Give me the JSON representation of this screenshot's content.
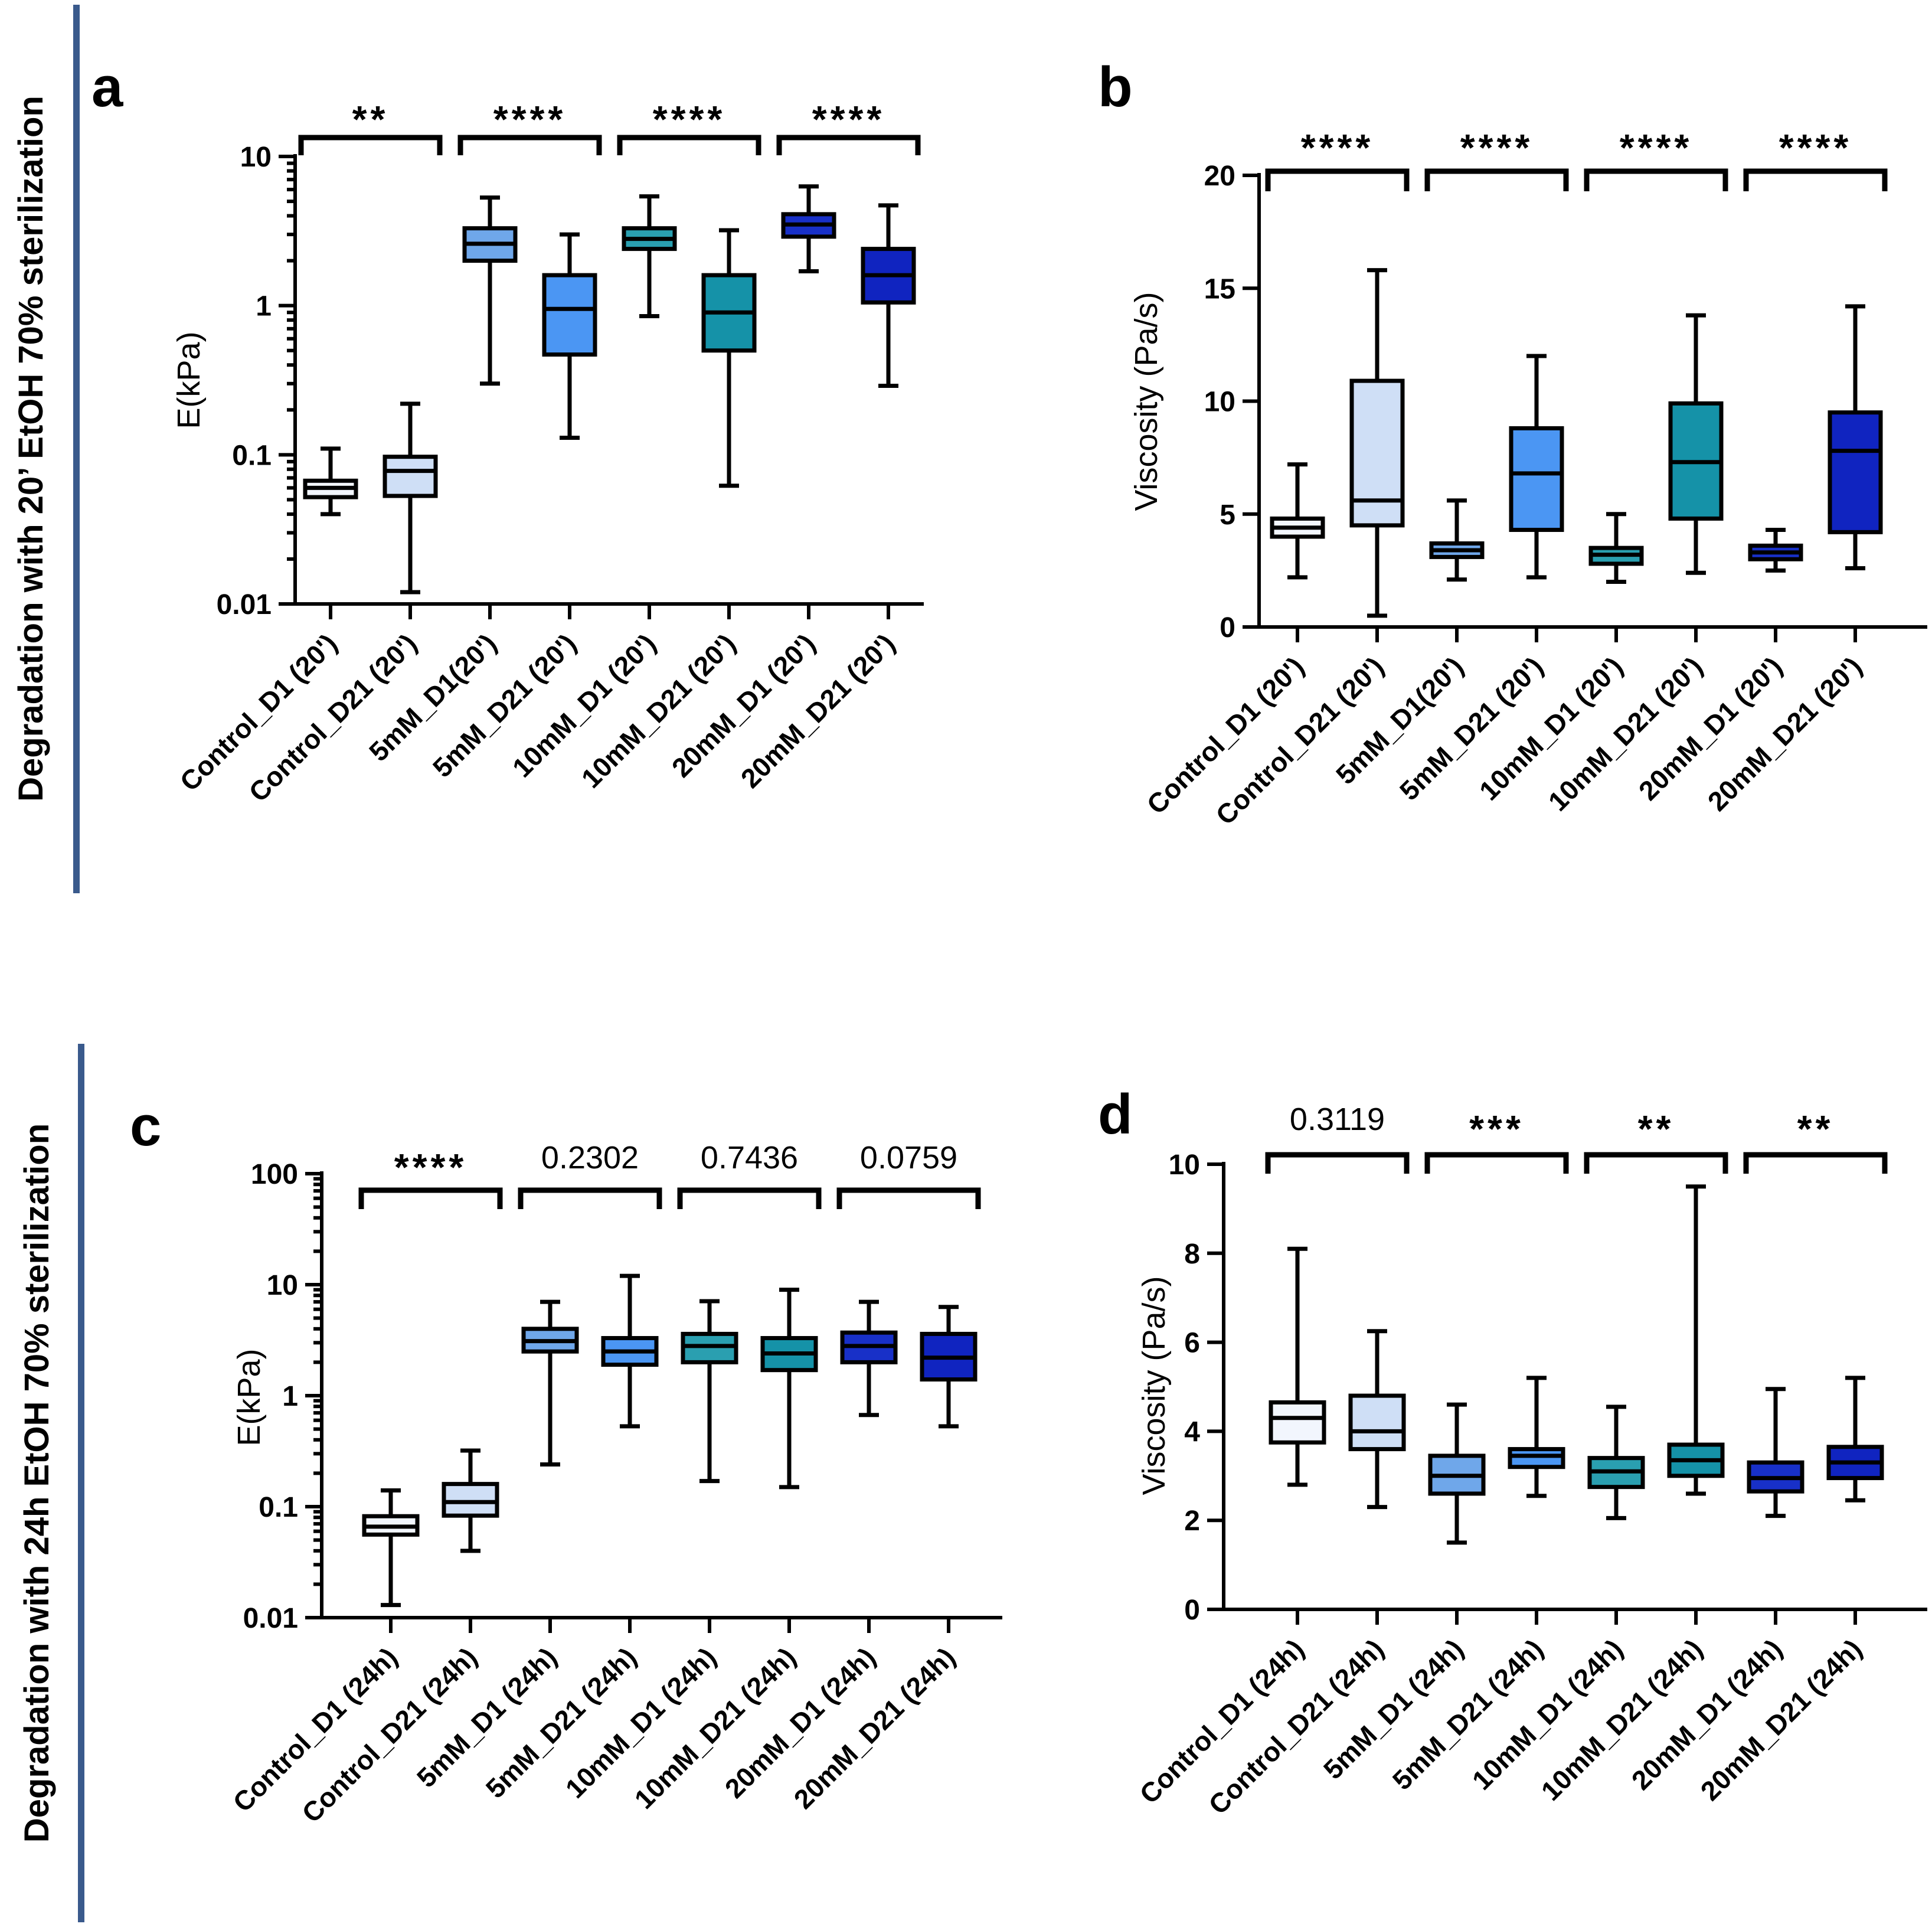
{
  "figure": {
    "side_label_top": "Degradation  with 20’ EtOH 70% sterilization",
    "side_label_bottom": "Degradation  with 24h EtOH 70% sterilization",
    "side_bar_color": "#3a5a8c"
  },
  "chart_data": [
    {
      "panel": "a",
      "type": "box",
      "ylabel": "E(kPa)",
      "yscale": "log",
      "ylim": [
        0.01,
        10
      ],
      "yticks": [
        0.01,
        0.1,
        1,
        10
      ],
      "ytick_labels": [
        "0.01",
        "0.1",
        "1",
        "10"
      ],
      "categories": [
        "Control_D1 (20')",
        "Control_D21 (20')",
        "5mM_D1(20')",
        "5mM_D21 (20')",
        "10mM_D1 (20')",
        "10mM_D21 (20')",
        "20mM_D1 (20')",
        "20mM_D21 (20')"
      ],
      "colors": [
        "#f2f6fd",
        "#cfdff6",
        "#6fa7ea",
        "#4b96f3",
        "#2a9fb0",
        "#1592a8",
        "#1830c8",
        "#1024c0"
      ],
      "boxes": [
        {
          "min": 0.04,
          "q1": 0.052,
          "median": 0.06,
          "q3": 0.067,
          "max": 0.11
        },
        {
          "min": 0.012,
          "q1": 0.053,
          "median": 0.078,
          "q3": 0.097,
          "max": 0.22
        },
        {
          "min": 0.3,
          "q1": 2.0,
          "median": 2.6,
          "q3": 3.3,
          "max": 5.3
        },
        {
          "min": 0.13,
          "q1": 0.47,
          "median": 0.95,
          "q3": 1.6,
          "max": 3.0
        },
        {
          "min": 0.85,
          "q1": 2.4,
          "median": 2.8,
          "q3": 3.3,
          "max": 5.4
        },
        {
          "min": 0.062,
          "q1": 0.5,
          "median": 0.9,
          "q3": 1.6,
          "max": 3.2
        },
        {
          "min": 1.7,
          "q1": 2.9,
          "median": 3.5,
          "q3": 4.1,
          "max": 6.3
        },
        {
          "min": 0.29,
          "q1": 1.05,
          "median": 1.6,
          "q3": 2.4,
          "max": 4.7
        }
      ],
      "comparisons": [
        {
          "pair": [
            0,
            1
          ],
          "label": "**"
        },
        {
          "pair": [
            2,
            3
          ],
          "label": "****"
        },
        {
          "pair": [
            4,
            5
          ],
          "label": "****"
        },
        {
          "pair": [
            6,
            7
          ],
          "label": "****"
        }
      ]
    },
    {
      "panel": "b",
      "type": "box",
      "ylabel": "Viscosity (Pa/s)",
      "yscale": "linear",
      "ylim": [
        0,
        20
      ],
      "yticks": [
        0,
        5,
        10,
        15,
        20
      ],
      "ytick_labels": [
        "0",
        "5",
        "10",
        "15",
        "20"
      ],
      "categories": [
        "Control_D1 (20')",
        "Control_D21 (20')",
        "5mM_D1(20')",
        "5mM_D21 (20')",
        "10mM_D1 (20')",
        "10mM_D21 (20')",
        "20mM_D1 (20')",
        "20mM_D21 (20')"
      ],
      "colors": [
        "#f2f6fd",
        "#cfdff6",
        "#6fa7ea",
        "#4b96f3",
        "#2a9fb0",
        "#1592a8",
        "#1830c8",
        "#1024c0"
      ],
      "boxes": [
        {
          "min": 2.2,
          "q1": 4.0,
          "median": 4.4,
          "q3": 4.8,
          "max": 7.2
        },
        {
          "min": 0.5,
          "q1": 4.5,
          "median": 5.6,
          "q3": 10.9,
          "max": 15.8
        },
        {
          "min": 2.1,
          "q1": 3.1,
          "median": 3.4,
          "q3": 3.7,
          "max": 5.6
        },
        {
          "min": 2.2,
          "q1": 4.3,
          "median": 6.8,
          "q3": 8.8,
          "max": 12.0
        },
        {
          "min": 2.0,
          "q1": 2.8,
          "median": 3.2,
          "q3": 3.5,
          "max": 5.0
        },
        {
          "min": 2.4,
          "q1": 4.8,
          "median": 7.3,
          "q3": 9.9,
          "max": 13.8
        },
        {
          "min": 2.5,
          "q1": 3.0,
          "median": 3.3,
          "q3": 3.6,
          "max": 4.3
        },
        {
          "min": 2.6,
          "q1": 4.2,
          "median": 7.8,
          "q3": 9.5,
          "max": 14.2
        }
      ],
      "comparisons": [
        {
          "pair": [
            0,
            1
          ],
          "label": "****"
        },
        {
          "pair": [
            2,
            3
          ],
          "label": "****"
        },
        {
          "pair": [
            4,
            5
          ],
          "label": "****"
        },
        {
          "pair": [
            6,
            7
          ],
          "label": "****"
        }
      ]
    },
    {
      "panel": "c",
      "type": "box",
      "ylabel": "E(kPa)",
      "yscale": "log",
      "ylim": [
        0.01,
        100
      ],
      "yticks": [
        0.01,
        0.1,
        1,
        10,
        100
      ],
      "ytick_labels": [
        "0.01",
        "0.1",
        "1",
        "10",
        "100"
      ],
      "categories": [
        "Control_D1 (24h)",
        "Control_D21 (24h)",
        "5mM_D1 (24h)",
        "5mM_D21 (24h)",
        "10mM_D1 (24h)",
        "10mM_D21 (24h)",
        "20mM_D1 (24h)",
        "20mM_D21 (24h)"
      ],
      "colors": [
        "#f2f6fd",
        "#cfdff6",
        "#6fa7ea",
        "#4b96f3",
        "#2a9fb0",
        "#1592a8",
        "#1830c8",
        "#1024c0"
      ],
      "boxes": [
        {
          "min": 0.013,
          "q1": 0.056,
          "median": 0.066,
          "q3": 0.082,
          "max": 0.14
        },
        {
          "min": 0.04,
          "q1": 0.083,
          "median": 0.11,
          "q3": 0.16,
          "max": 0.32
        },
        {
          "min": 0.24,
          "q1": 2.5,
          "median": 3.1,
          "q3": 4.0,
          "max": 7.0
        },
        {
          "min": 0.53,
          "q1": 1.9,
          "median": 2.5,
          "q3": 3.3,
          "max": 12.0
        },
        {
          "min": 0.17,
          "q1": 2.0,
          "median": 2.8,
          "q3": 3.6,
          "max": 7.1
        },
        {
          "min": 0.15,
          "q1": 1.7,
          "median": 2.4,
          "q3": 3.3,
          "max": 9.0
        },
        {
          "min": 0.67,
          "q1": 2.0,
          "median": 2.8,
          "q3": 3.7,
          "max": 7.0
        },
        {
          "min": 0.53,
          "q1": 1.4,
          "median": 2.2,
          "q3": 3.6,
          "max": 6.3
        }
      ],
      "comparisons": [
        {
          "pair": [
            0,
            1
          ],
          "label": "****",
          "kind": "stars"
        },
        {
          "pair": [
            2,
            3
          ],
          "label": "0.2302",
          "kind": "p"
        },
        {
          "pair": [
            4,
            5
          ],
          "label": "0.7436",
          "kind": "p"
        },
        {
          "pair": [
            6,
            7
          ],
          "label": "0.0759",
          "kind": "p"
        }
      ]
    },
    {
      "panel": "d",
      "type": "box",
      "ylabel": "Viscosity (Pa/s)",
      "yscale": "linear",
      "ylim": [
        0,
        10
      ],
      "yticks": [
        0,
        2,
        4,
        6,
        8,
        10
      ],
      "ytick_labels": [
        "0",
        "2",
        "4",
        "6",
        "8",
        "10"
      ],
      "categories": [
        "Control_D1 (24h)",
        "Control_D21 (24h)",
        "5mM_D1 (24h)",
        "5mM_D21 (24h)",
        "10mM_D1 (24h)",
        "10mM_D21 (24h)",
        "20mM_D1 (24h)",
        "20mM_D21 (24h)"
      ],
      "colors": [
        "#f2f6fd",
        "#cfdff6",
        "#6fa7ea",
        "#4b96f3",
        "#2a9fb0",
        "#1592a8",
        "#1830c8",
        "#1024c0"
      ],
      "boxes": [
        {
          "min": 2.8,
          "q1": 3.75,
          "median": 4.3,
          "q3": 4.65,
          "max": 8.1
        },
        {
          "min": 2.3,
          "q1": 3.6,
          "median": 4.0,
          "q3": 4.8,
          "max": 6.25
        },
        {
          "min": 1.5,
          "q1": 2.6,
          "median": 3.0,
          "q3": 3.45,
          "max": 4.6
        },
        {
          "min": 2.55,
          "q1": 3.2,
          "median": 3.45,
          "q3": 3.6,
          "max": 5.2
        },
        {
          "min": 2.05,
          "q1": 2.75,
          "median": 3.1,
          "q3": 3.4,
          "max": 4.55
        },
        {
          "min": 2.6,
          "q1": 3.0,
          "median": 3.35,
          "q3": 3.7,
          "max": 9.5
        },
        {
          "min": 2.1,
          "q1": 2.65,
          "median": 2.95,
          "q3": 3.3,
          "max": 4.95
        },
        {
          "min": 2.45,
          "q1": 2.95,
          "median": 3.3,
          "q3": 3.65,
          "max": 5.2
        }
      ],
      "comparisons": [
        {
          "pair": [
            0,
            1
          ],
          "label": "0.3119",
          "kind": "p"
        },
        {
          "pair": [
            2,
            3
          ],
          "label": "***",
          "kind": "stars"
        },
        {
          "pair": [
            4,
            5
          ],
          "label": "**",
          "kind": "stars"
        },
        {
          "pair": [
            6,
            7
          ],
          "label": "**",
          "kind": "stars"
        }
      ]
    }
  ]
}
